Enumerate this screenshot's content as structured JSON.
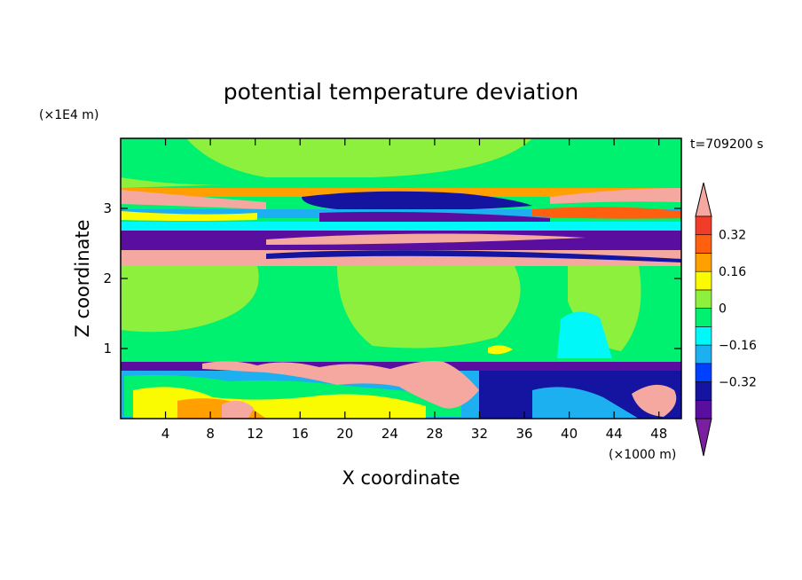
{
  "chart_data": {
    "type": "heatmap",
    "title": "potential temperature deviation",
    "time_label": "t=709200 s",
    "xlabel": "X coordinate",
    "ylabel": "Z coordinate",
    "x_unit": "(×1000 m)",
    "y_unit": "(×1E4 m)",
    "xlim": [
      0,
      50
    ],
    "ylim": [
      0,
      4
    ],
    "x_ticks": [
      4,
      8,
      12,
      16,
      20,
      24,
      28,
      32,
      36,
      40,
      44,
      48
    ],
    "y_ticks": [
      1,
      2,
      3
    ],
    "colorbar": {
      "levels": [
        -0.48,
        -0.4,
        -0.32,
        -0.24,
        -0.16,
        -0.08,
        0,
        0.08,
        0.16,
        0.24,
        0.32,
        0.4
      ],
      "tick_labels": [
        "0.32",
        "0.16",
        "0",
        "−0.16",
        "−0.32"
      ],
      "tick_values": [
        0.32,
        0.16,
        0,
        -0.16,
        -0.32
      ],
      "colors": [
        "#7a1fa0",
        "#5a0ea0",
        "#1414a0",
        "#0040ff",
        "#1cb0f0",
        "#00f8f8",
        "#00f070",
        "#8cf03c",
        "#fafa00",
        "#ffa000",
        "#ff6010",
        "#f03c28",
        "#f5a8a0"
      ],
      "extend": "both"
    },
    "fields": [
      {
        "name": "background",
        "value": 0.04
      },
      {
        "name": "upper layer",
        "value": 0.04
      },
      {
        "name": "pink band upper",
        "value": 0.44
      },
      {
        "name": "violet band",
        "value": -0.44
      },
      {
        "name": "pink band lower",
        "value": 0.44
      },
      {
        "name": "navy wave",
        "value": -0.36
      },
      {
        "name": "cyan patch",
        "value": -0.12
      },
      {
        "name": "surface layer",
        "value": -0.44
      },
      {
        "name": "surface pink eddies",
        "value": 0.44
      }
    ]
  }
}
